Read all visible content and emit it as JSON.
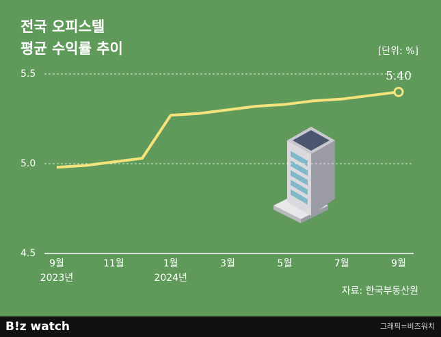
{
  "chart_data": {
    "type": "line",
    "title": [
      "전국 오피스텔",
      "평균 수익률 추이"
    ],
    "unit": "[단위: %]",
    "source": "자료: 한국부동산원",
    "credit": "그래픽=비즈워치",
    "brand": "B!z watch",
    "categories": [
      "9월",
      null,
      "11월",
      null,
      "1월",
      null,
      "3월",
      null,
      "5월",
      null,
      "7월",
      null,
      "9월"
    ],
    "category_years": [
      "2023년",
      null,
      null,
      null,
      "2024년",
      null,
      null,
      null,
      null,
      null,
      null,
      null,
      null
    ],
    "series": [
      {
        "color": "#f4e37c",
        "values": [
          4.98,
          4.99,
          5.01,
          5.03,
          5.27,
          5.28,
          5.3,
          5.32,
          5.33,
          5.35,
          5.36,
          5.38,
          5.4
        ],
        "value_labels": [
          null,
          null,
          null,
          null,
          null,
          null,
          null,
          null,
          null,
          null,
          null,
          null,
          "5.40"
        ]
      }
    ],
    "ylim": [
      4.5,
      5.5
    ],
    "yticks": [
      4.5,
      {
        "value": 5.0,
        "label": "5.0"
      },
      5.5
    ],
    "grid": true
  }
}
